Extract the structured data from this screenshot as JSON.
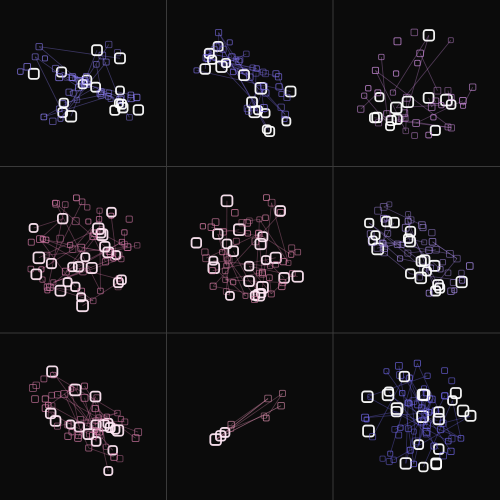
{
  "canvas": {
    "background": "#0b0b0b",
    "grid_line_color": "#3a3a3a"
  },
  "panels": [
    {
      "id": "p1",
      "palette": "violet",
      "accent": "#8a7cf0",
      "core": "#ffffff",
      "shape": "cross-burst",
      "seed": 11,
      "nodes": 58
    },
    {
      "id": "p2",
      "palette": "violet",
      "accent": "#7d6ee8",
      "core": "#ffffff",
      "shape": "diagonal-cloud",
      "seed": 23,
      "nodes": 56
    },
    {
      "id": "p3",
      "palette": "pink-violet",
      "accent": "#c88ad8",
      "core": "#ffffff",
      "shape": "ring-cluster",
      "seed": 37,
      "nodes": 48
    },
    {
      "id": "p4",
      "palette": "pink",
      "accent": "#d57aa8",
      "core": "#ffe7f4",
      "shape": "round-cloud",
      "seed": 41,
      "nodes": 72
    },
    {
      "id": "p5",
      "palette": "pink",
      "accent": "#d07aa0",
      "core": "#ffe7f4",
      "shape": "round-cloud",
      "seed": 53,
      "nodes": 70
    },
    {
      "id": "p6",
      "palette": "violet-pink",
      "accent": "#a78ce8",
      "core": "#ffffff",
      "shape": "diagonal-cloud",
      "seed": 67,
      "nodes": 62
    },
    {
      "id": "p7",
      "palette": "pink",
      "accent": "#d47aa6",
      "core": "#ffe7f4",
      "shape": "diagonal-cloud",
      "seed": 71,
      "nodes": 62
    },
    {
      "id": "p8",
      "palette": "pink",
      "accent": "#d58aa8",
      "core": "#ffe7f4",
      "shape": "small-chain",
      "seed": 83,
      "nodes": 10
    },
    {
      "id": "p9",
      "palette": "violet",
      "accent": "#6f66e6",
      "core": "#ffffff",
      "shape": "round-cloud",
      "seed": 97,
      "nodes": 74
    }
  ]
}
